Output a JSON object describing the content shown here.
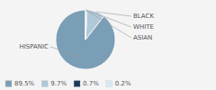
{
  "chart_data": {
    "type": "pie",
    "categories": [
      "HISPANIC",
      "BLACK",
      "WHITE",
      "ASIAN"
    ],
    "values": [
      89.5,
      9.7,
      0.7,
      0.2
    ],
    "value_labels": [
      "89.5%",
      "9.7%",
      "0.7%",
      "0.2%"
    ],
    "colors": [
      "#7a9eb5",
      "#b0c8d8",
      "#1c3a5c",
      "#d8e8f0"
    ],
    "legend": "bottom"
  }
}
